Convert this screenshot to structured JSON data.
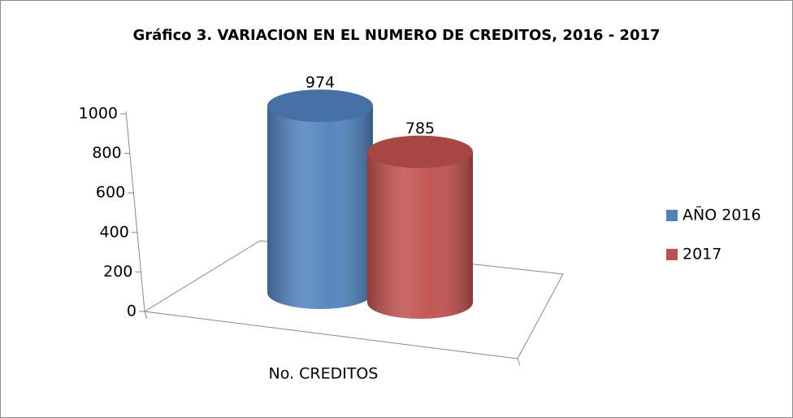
{
  "chart_data": {
    "type": "bar3d",
    "title": "Gráfico 3. VARIACION EN EL NUMERO DE CREDITOS, 2016 - 2017",
    "categories": [
      "No. CREDITOS"
    ],
    "series": [
      {
        "name": "AÑO 2016",
        "color": "#4f81bd",
        "values": [
          974
        ]
      },
      {
        "name": "2017",
        "color": "#c0504d",
        "values": [
          785
        ]
      }
    ],
    "ylim": [
      0,
      1000
    ],
    "yticks": [
      0,
      200,
      400,
      600,
      800,
      1000
    ],
    "legend": "right"
  }
}
